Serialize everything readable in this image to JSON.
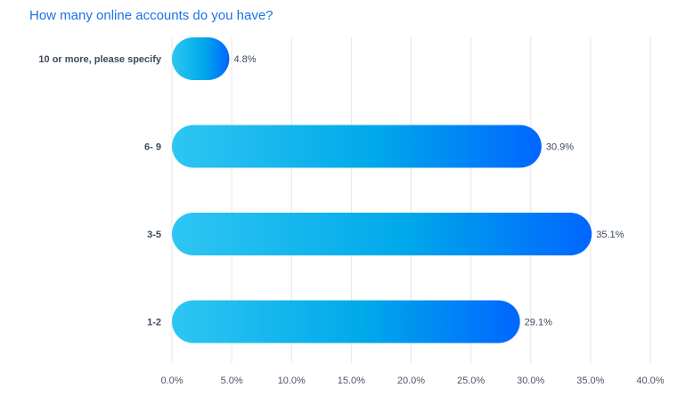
{
  "colors": {
    "title": "#1a73e8",
    "bar_gradient_start": "#2ec6f2",
    "bar_gradient_mid": "#00a9ea",
    "bar_gradient_end": "#0066ff",
    "grid": "#e6e6e6",
    "text": "#3c4a5c"
  },
  "chart_data": {
    "type": "bar",
    "orientation": "horizontal",
    "title": "How many online accounts do you have?",
    "categories": [
      "10 or more, please specify",
      "6- 9",
      "3-5",
      "1-2"
    ],
    "values": [
      4.8,
      30.9,
      35.1,
      29.1
    ],
    "value_labels": [
      "4.8%",
      "30.9%",
      "35.1%",
      "29.1%"
    ],
    "xlim": [
      0,
      40
    ],
    "xticks": [
      0,
      5,
      10,
      15,
      20,
      25,
      30,
      35,
      40
    ],
    "xtick_labels": [
      "0.0%",
      "5.0%",
      "10.0%",
      "15.0%",
      "20.0%",
      "25.0%",
      "30.0%",
      "35.0%",
      "40.0%"
    ],
    "grid": true,
    "legend": "none"
  }
}
